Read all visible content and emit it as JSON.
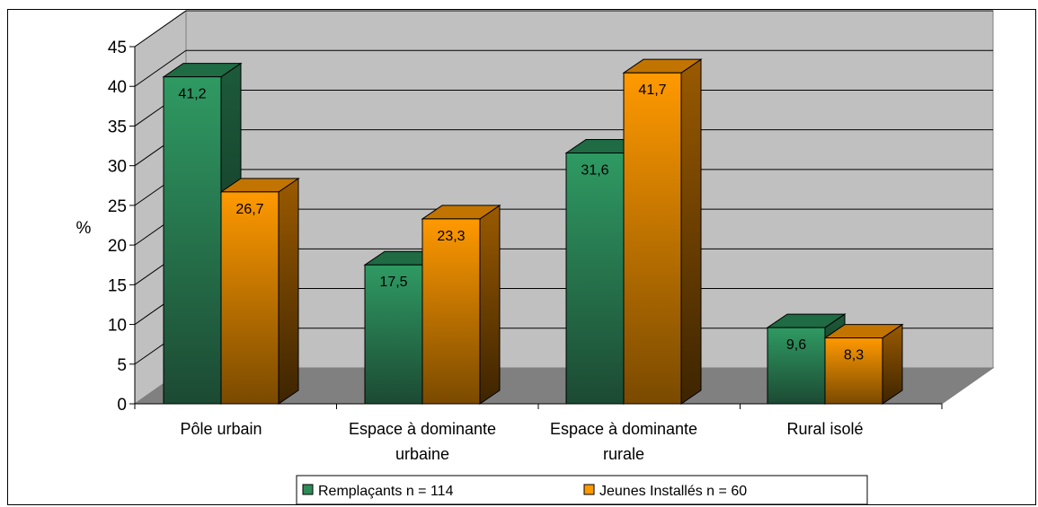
{
  "chart_data": {
    "type": "bar",
    "title": "",
    "xlabel": "",
    "ylabel": "%",
    "ylim": [
      0,
      45
    ],
    "yticks": [
      0,
      5,
      10,
      15,
      20,
      25,
      30,
      35,
      40,
      45
    ],
    "categories": [
      "Pôle urbain",
      "Espace à dominante urbaine",
      "Espace à dominante rurale",
      "Rural isolé"
    ],
    "category_lines": [
      [
        "Pôle urbain"
      ],
      [
        "Espace à dominante",
        "urbaine"
      ],
      [
        "Espace à dominante",
        "rurale"
      ],
      [
        "Rural isolé"
      ]
    ],
    "series": [
      {
        "name": "Remplaçants n = 114",
        "values": [
          41.2,
          17.5,
          31.6,
          9.6
        ],
        "labels": [
          "41,2",
          "17,5",
          "31,6",
          "9,6"
        ],
        "color": "#2e8b57"
      },
      {
        "name": "Jeunes Installés n = 60",
        "values": [
          26.7,
          23.3,
          41.7,
          8.3
        ],
        "labels": [
          "26,7",
          "23,3",
          "41,7",
          "8,3"
        ],
        "color": "#ff9900"
      }
    ],
    "grid": true,
    "legend_position": "bottom",
    "style": "3d-column"
  }
}
